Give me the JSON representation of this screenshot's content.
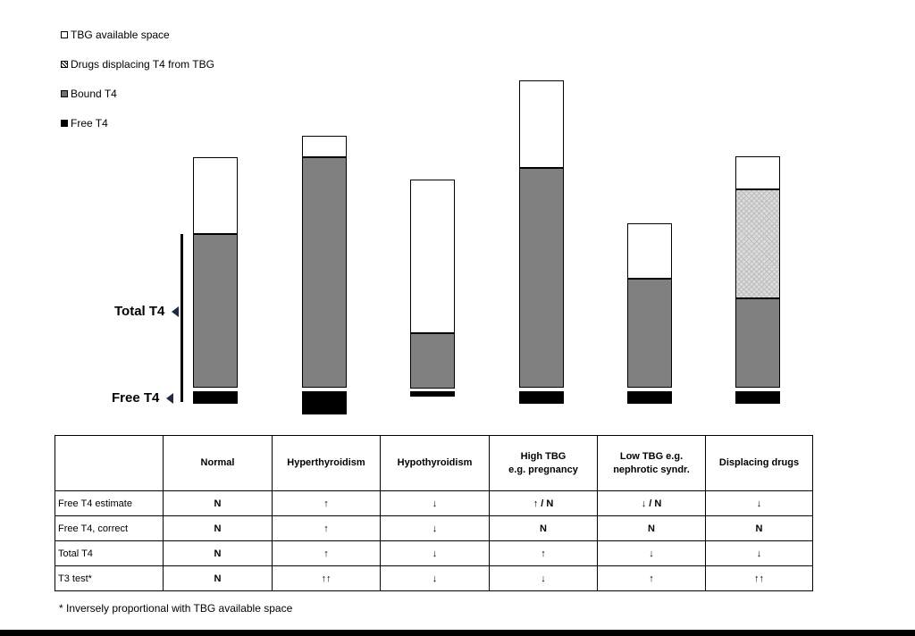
{
  "legend": [
    {
      "label": "TBG available space",
      "icon": "empty-square"
    },
    {
      "label": "Drugs displacing T4 from TBG",
      "icon": "hatched-square"
    },
    {
      "label": "Bound T4",
      "icon": "gray-square"
    },
    {
      "label": "Free T4",
      "icon": "black-square"
    }
  ],
  "range_labels": {
    "total": "Total T4",
    "free": "Free T4"
  },
  "chart_data": {
    "type": "bar",
    "stacked": true,
    "categories": [
      "Normal",
      "Hyperthyroidism",
      "Hypothyroidism",
      "High TBG e.g. pregnancy",
      "Low TBG e.g. nephrotic syndr.",
      "Displacing drugs"
    ],
    "series": [
      {
        "name": "Free T4",
        "values": [
          14,
          26,
          6,
          14,
          14,
          14
        ],
        "color": "#000000"
      },
      {
        "name": "Bound T4",
        "values": [
          172,
          258,
          62,
          246,
          122,
          100
        ],
        "color": "#808080"
      },
      {
        "name": "Drugs displacing T4 from TBG",
        "values": [
          0,
          0,
          0,
          0,
          0,
          122
        ],
        "color": "#dcdcdc"
      },
      {
        "name": "TBG available space",
        "values": [
          86,
          24,
          172,
          98,
          62,
          37
        ],
        "color": "#ffffff"
      }
    ],
    "legend_position": "top-left",
    "grid": false,
    "axes": false,
    "note": ""
  },
  "table": {
    "headers": [
      {
        "line1": "",
        "line2": ""
      },
      {
        "line1": "Normal",
        "line2": ""
      },
      {
        "line1": "Hyperthyroidism",
        "line2": ""
      },
      {
        "line1": "Hypothyroidism",
        "line2": ""
      },
      {
        "line1": "High TBG",
        "line2": "e.g. pregnancy"
      },
      {
        "line1": "Low TBG e.g.",
        "line2": "nephrotic syndr."
      },
      {
        "line1": "Displacing drugs",
        "line2": ""
      }
    ],
    "rows": [
      {
        "label": "Free T4 estimate",
        "values": [
          "N",
          "↑",
          "↓",
          "↑ / N",
          "↓ / N",
          "↓"
        ]
      },
      {
        "label": "Free T4, correct",
        "values": [
          "N",
          "↑",
          "↓",
          "N",
          "N",
          "N"
        ]
      },
      {
        "label": "Total T4",
        "values": [
          "N",
          "↑",
          "↓",
          "↑",
          "↓",
          "↓"
        ]
      },
      {
        "label": "T3 test*",
        "values": [
          "N",
          "↑↑",
          "↓",
          "↓",
          "↑",
          "↑↑"
        ]
      }
    ]
  },
  "footnote": "* Inversely proportional with TBG available space"
}
